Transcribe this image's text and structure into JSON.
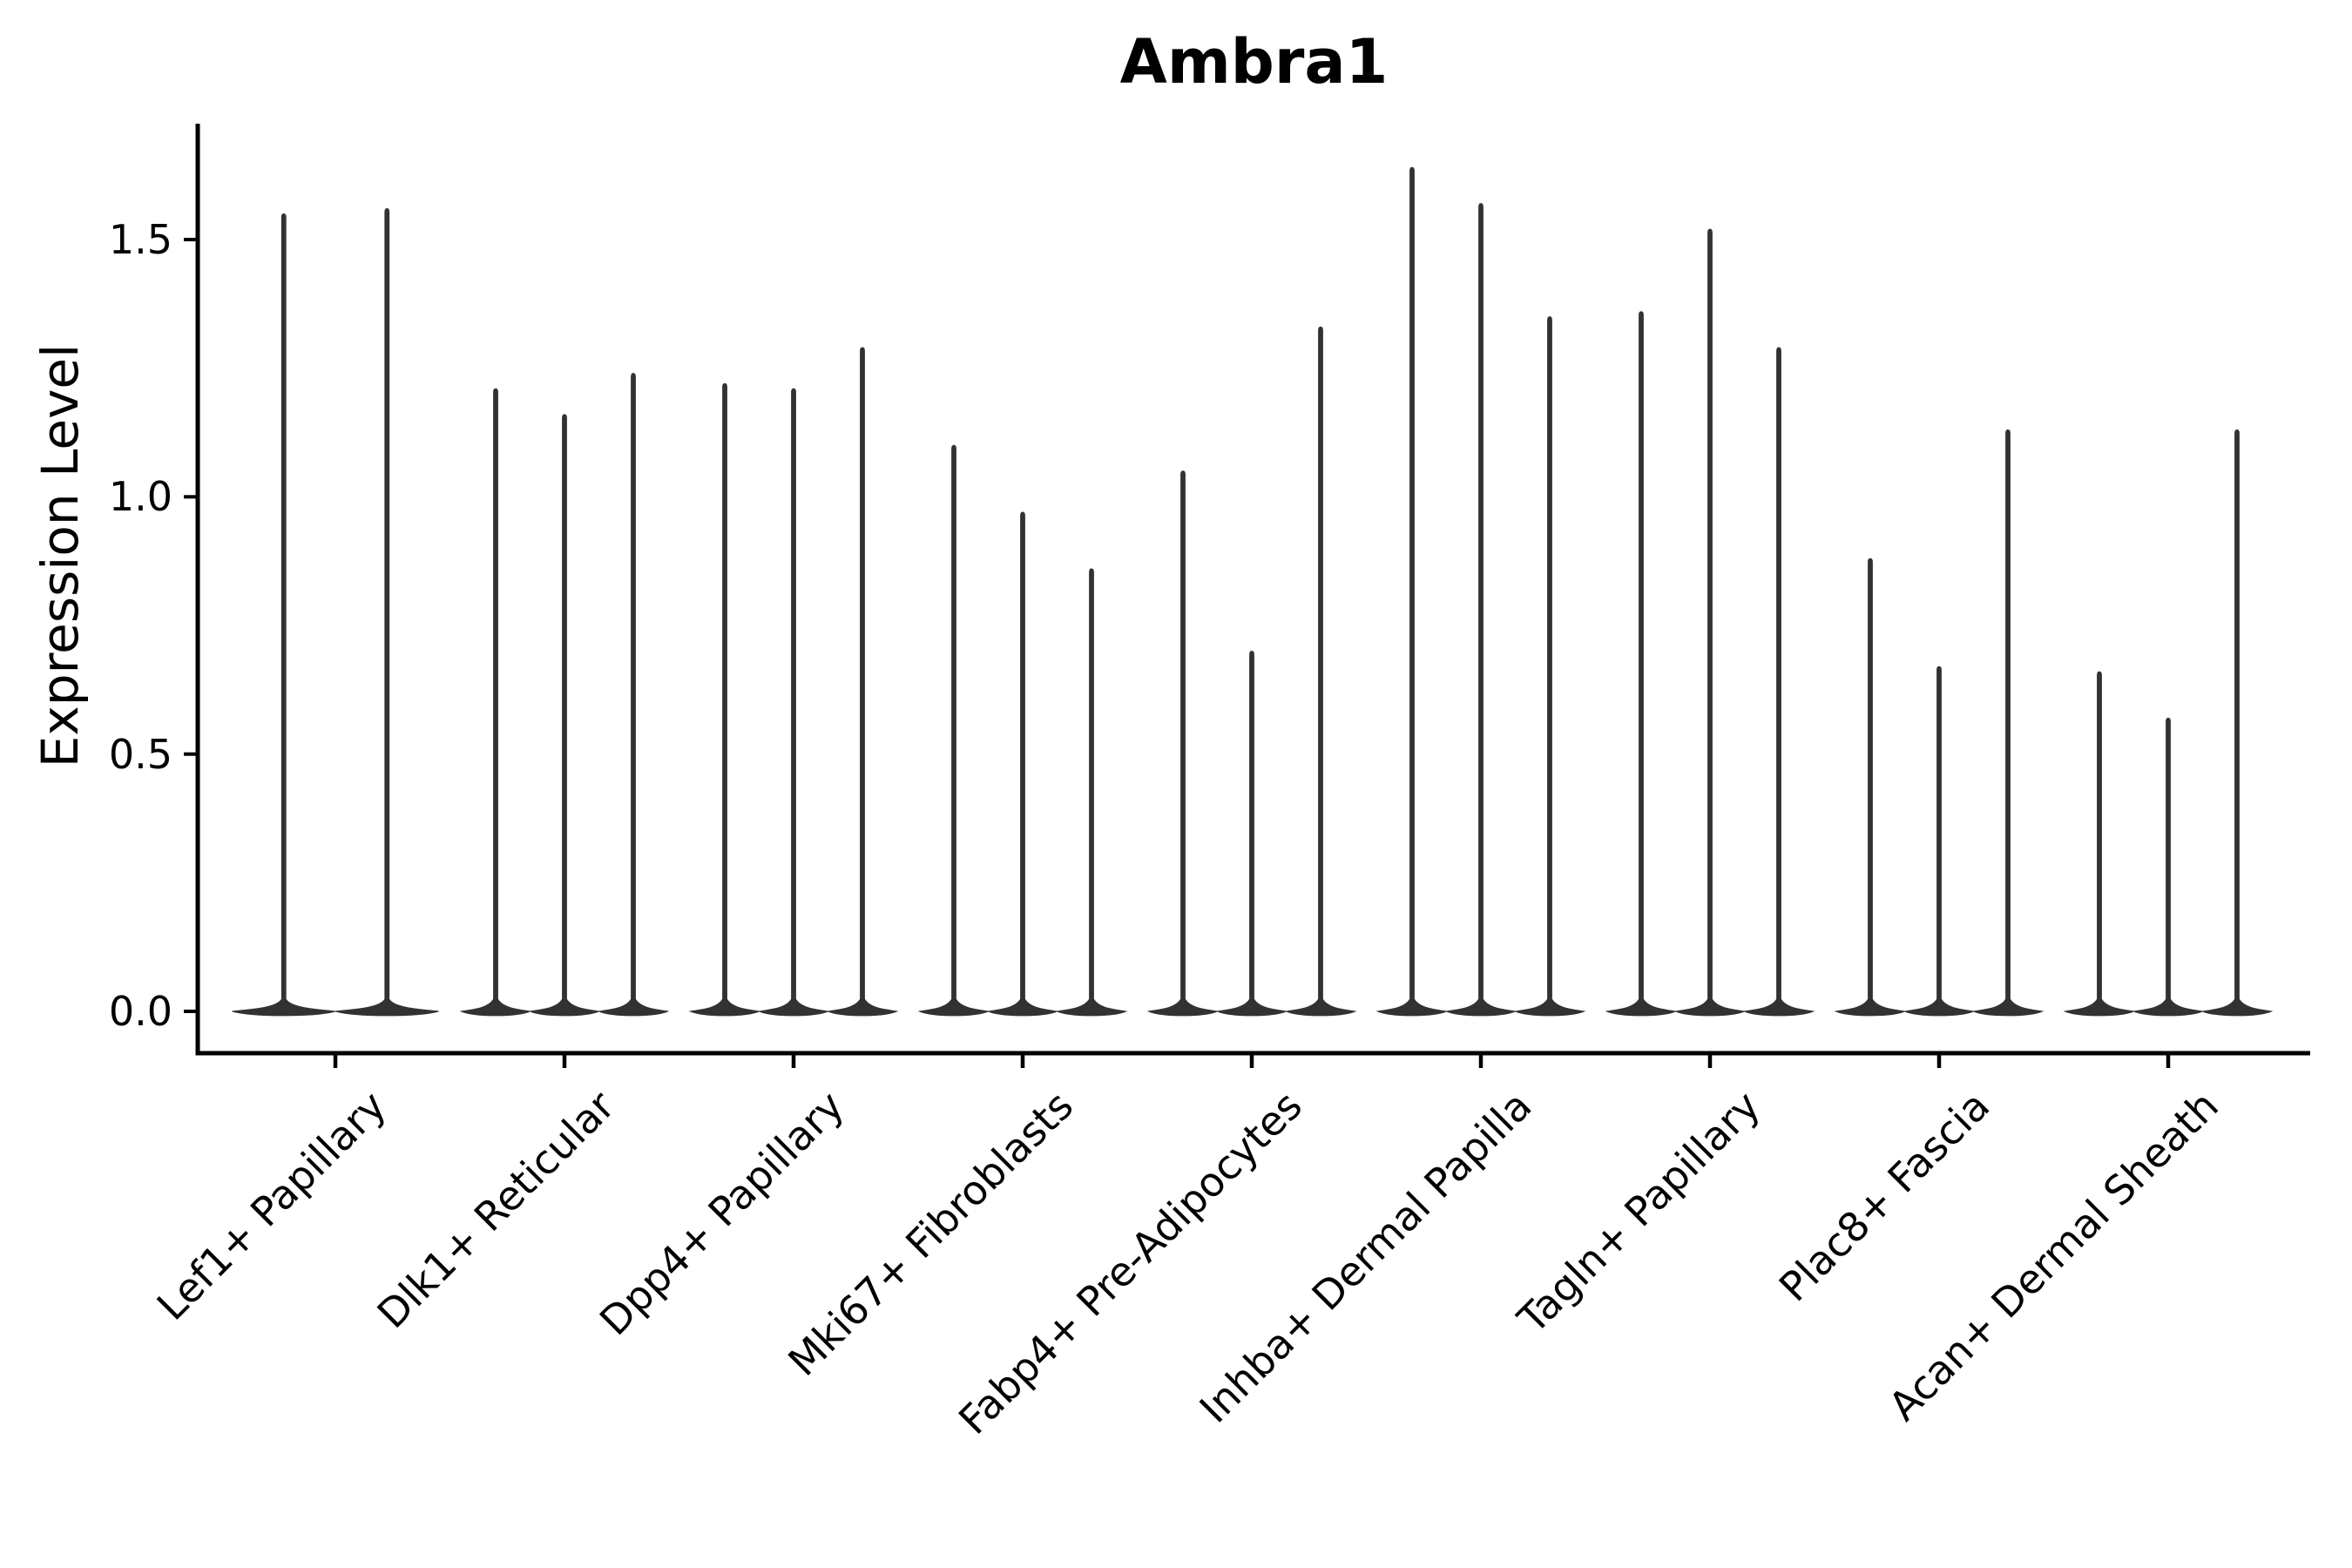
{
  "title": "Ambra1",
  "chart_data": {
    "type": "violin",
    "title": "Ambra1",
    "xlabel": "",
    "ylabel": "Expression Level",
    "ylim": [
      -0.08,
      1.73
    ],
    "yticks": [
      0.0,
      0.5,
      1.0,
      1.5
    ],
    "ytick_labels": [
      "0.0",
      "0.5",
      "1.0",
      "1.5"
    ],
    "grid": false,
    "legend": "none",
    "violin_style": "needle violins concentrated at 0 with thin spikes to max value",
    "violin_color": "#323232",
    "axis_color": "#000000",
    "categories": [
      {
        "label": "Lef1+ Papillary",
        "violin_maxima": [
          1.55,
          1.56
        ]
      },
      {
        "label": "Dlk1+ Reticular",
        "violin_maxima": [
          1.21,
          1.16,
          1.24
        ]
      },
      {
        "label": "Dpp4+ Papillary",
        "violin_maxima": [
          1.22,
          1.21,
          1.29
        ]
      },
      {
        "label": "Mki67+ Fibroblasts",
        "violin_maxima": [
          1.1,
          0.97,
          0.86
        ]
      },
      {
        "label": "Fabp4+ Pre-Adipocytes",
        "violin_maxima": [
          1.05,
          0.7,
          1.33
        ]
      },
      {
        "label": "Inhba+ Dermal Papilla",
        "violin_maxima": [
          1.64,
          1.57,
          1.35
        ]
      },
      {
        "label": "Tagln+ Papillary",
        "violin_maxima": [
          1.36,
          1.52,
          1.29
        ]
      },
      {
        "label": "Plac8+ Fascia",
        "violin_maxima": [
          0.88,
          0.67,
          1.13
        ]
      },
      {
        "label": "Acan+ Dermal Sheath",
        "violin_maxima": [
          0.66,
          0.57,
          1.13
        ]
      }
    ]
  }
}
